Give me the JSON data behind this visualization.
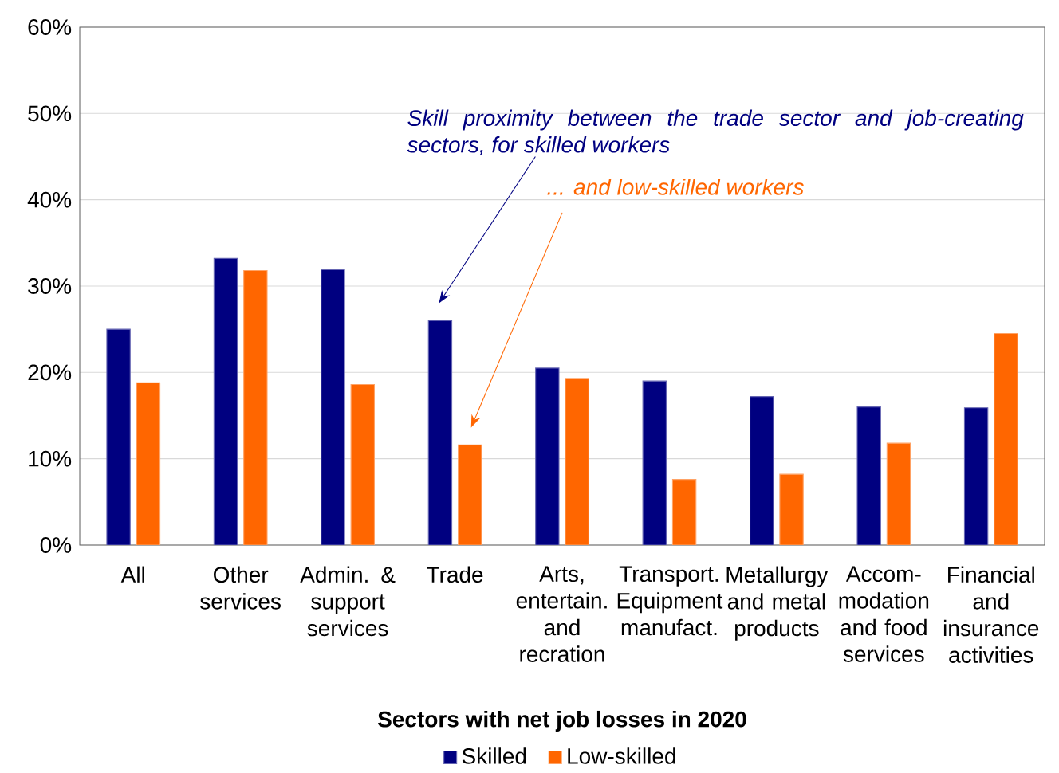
{
  "chart_data": {
    "type": "bar",
    "xlabel": "Sectors with net job losses in 2020",
    "categories": [
      "All",
      "Other services",
      "Admin. & support services",
      "Trade",
      "Arts, entertain. and recration",
      "Transport. Equipment manufact.",
      "Metallurgy and metal products",
      "Accom-modation and food services",
      "Financial and insurance activities"
    ],
    "series": [
      {
        "name": "Skilled",
        "color": "#000080",
        "values": [
          25.0,
          33.2,
          31.9,
          26.0,
          20.5,
          19.0,
          17.2,
          16.0,
          15.9
        ]
      },
      {
        "name": "Low-skilled",
        "color": "#ff6600",
        "values": [
          18.8,
          31.8,
          18.6,
          11.6,
          19.3,
          7.6,
          8.2,
          11.8,
          24.5
        ]
      }
    ],
    "ylim": [
      0,
      60
    ],
    "yticks": [
      {
        "value": 0,
        "label": "0%"
      },
      {
        "value": 10,
        "label": "10%"
      },
      {
        "value": 20,
        "label": "20%"
      },
      {
        "value": 30,
        "label": "30%"
      },
      {
        "value": 40,
        "label": "40%"
      },
      {
        "value": 50,
        "label": "50%"
      },
      {
        "value": 60,
        "label": "60%"
      }
    ],
    "grid": "y",
    "legend": "bottom",
    "annotations": [
      "Skill proximity between the trade sector and job-creating sectors, for skilled workers",
      "... and low-skilled workers"
    ]
  }
}
